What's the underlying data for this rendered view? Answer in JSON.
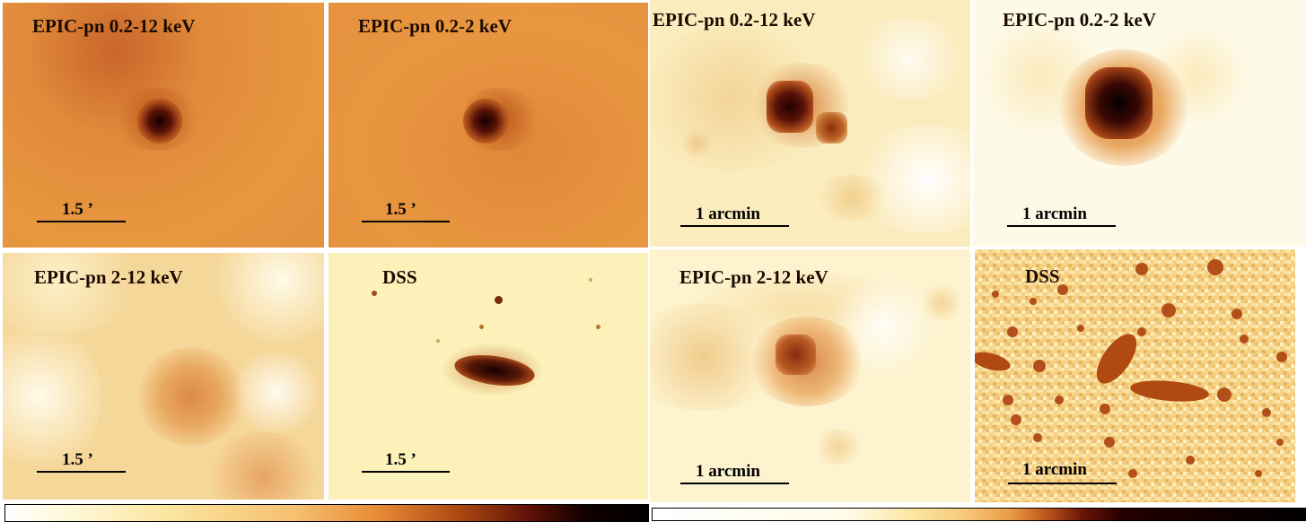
{
  "left_group": {
    "panels": [
      {
        "label": "EPIC-pn 0.2-12 keV",
        "scale": "1.5 ’"
      },
      {
        "label": "EPIC-pn 0.2-2 keV",
        "scale": "1.5 ’"
      },
      {
        "label": "EPIC-pn 2-12 keV",
        "scale": "1.5 ’"
      },
      {
        "label": "DSS",
        "scale": "1.5 ’"
      }
    ]
  },
  "right_group": {
    "panels": [
      {
        "label": "EPIC-pn 0.2-12 keV",
        "scale": "1 arcmin"
      },
      {
        "label": "EPIC-pn 0.2-2 keV",
        "scale": "1 arcmin"
      },
      {
        "label": "EPIC-pn 2-12 keV",
        "scale": "1 arcmin"
      },
      {
        "label": "DSS",
        "scale": "1 arcmin"
      }
    ]
  },
  "colors": {
    "orange_bg": "#e5913a",
    "cream_bg": "#fdf1b8",
    "dark_core": "#1a0000",
    "brown": "#b5541c"
  }
}
